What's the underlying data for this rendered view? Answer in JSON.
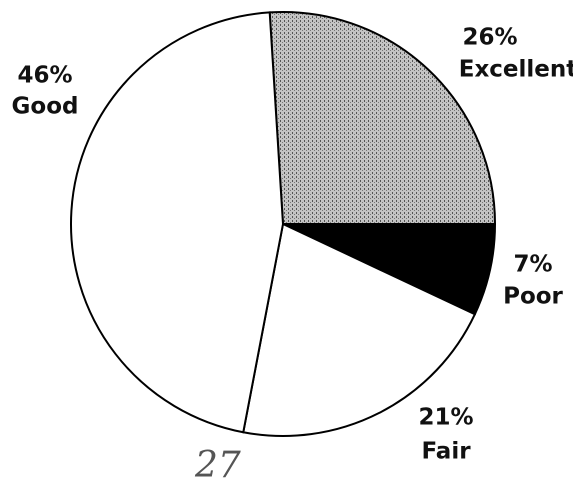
{
  "chart_data": {
    "type": "pie",
    "categories": [
      "Excellent",
      "Poor",
      "Fair",
      "Good"
    ],
    "values": [
      26,
      7,
      21,
      46
    ],
    "value_labels": [
      "26%",
      "7%",
      "21%",
      "46%"
    ],
    "colors": [
      "#b8b8b8",
      "#000000",
      "#ffffff",
      "#ffffff"
    ],
    "annotation": "27"
  }
}
